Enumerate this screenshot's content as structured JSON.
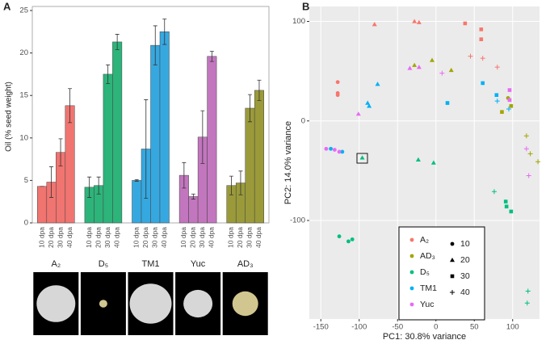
{
  "chart_data": [
    {
      "type": "bar",
      "panel": "A",
      "ylabel": "Oil (% seed weight)",
      "categories": [
        "10 dpa",
        "20 dpa",
        "30 dpa",
        "40 dpa"
      ],
      "ylim": [
        0,
        25
      ],
      "yticks": [
        0,
        5,
        10,
        15,
        20,
        25
      ],
      "series": [
        {
          "name": "A₂",
          "color": "#f07470",
          "values": [
            4.3,
            4.8,
            8.3,
            13.8
          ],
          "errors": [
            0,
            1.8,
            1.6,
            2.0
          ]
        },
        {
          "name": "D₅",
          "color": "#2db47a",
          "values": [
            4.2,
            4.4,
            17.5,
            21.3
          ],
          "errors": [
            1.2,
            1.0,
            1.1,
            0.9
          ]
        },
        {
          "name": "TM1",
          "color": "#36a8e0",
          "values": [
            5.0,
            8.7,
            20.9,
            22.5
          ],
          "errors": [
            0.1,
            5.8,
            2.3,
            1.5
          ]
        },
        {
          "name": "Yuc",
          "color": "#c276be",
          "values": [
            5.6,
            3.1,
            10.1,
            19.6
          ],
          "errors": [
            1.5,
            0.3,
            3.1,
            0.6
          ]
        },
        {
          "name": "AD₃",
          "color": "#9a9a3a",
          "values": [
            4.4,
            4.7,
            13.5,
            15.6
          ],
          "errors": [
            1.1,
            1.4,
            1.6,
            1.2
          ]
        }
      ]
    },
    {
      "type": "scatter",
      "panel": "B",
      "xlabel": "PC1: 30.8% variance",
      "ylabel": "PC2: 14.0% variance",
      "xlim": [
        -165,
        135
      ],
      "ylim": [
        -199,
        115
      ],
      "xticks": [
        -150,
        -100,
        -50,
        0,
        50,
        100
      ],
      "yticks": [
        -100,
        0,
        100
      ],
      "grid": true,
      "stages": [
        10,
        20,
        30,
        40
      ],
      "series": [
        {
          "name": "A₂",
          "color": "#f8766d",
          "x": [
            -128,
            -128,
            -128,
            -80,
            -28,
            -22,
            38,
            59,
            59,
            45,
            61,
            80
          ],
          "y": [
            39,
            28,
            26,
            97,
            100,
            99,
            98,
            92,
            82,
            65,
            63,
            54
          ],
          "stage": [
            10,
            10,
            10,
            20,
            20,
            20,
            30,
            30,
            30,
            40,
            40,
            40
          ]
        },
        {
          "name": "AD₃",
          "color": "#a3a500",
          "x": [
            94,
            -28,
            -5,
            20,
            98,
            86,
            118,
            123,
            133
          ],
          "y": [
            23,
            56,
            61,
            51,
            15,
            9,
            -15,
            -33,
            -41
          ],
          "stage": [
            10,
            20,
            20,
            20,
            30,
            30,
            40,
            40,
            40
          ]
        },
        {
          "name": "D₅",
          "color": "#00bf7d",
          "x": [
            -126,
            -114,
            -109,
            -96,
            -23,
            -3,
            91,
            92,
            98,
            76,
            120,
            119
          ],
          "y": [
            -116,
            -121,
            -119,
            -37,
            -39,
            -42,
            -81,
            -86,
            -91,
            -71,
            -171,
            -183
          ],
          "stage": [
            10,
            10,
            10,
            20,
            20,
            20,
            30,
            30,
            30,
            40,
            40,
            40
          ]
        },
        {
          "name": "TM1",
          "color": "#00b0f6",
          "x": [
            -137,
            -122,
            -87,
            -89,
            -76,
            15,
            61,
            79,
            80,
            95
          ],
          "y": [
            -28,
            -31,
            15,
            18,
            37,
            18,
            38,
            26,
            20,
            12
          ],
          "stage": [
            10,
            10,
            20,
            20,
            20,
            30,
            30,
            30,
            40,
            40
          ]
        },
        {
          "name": "Yuc",
          "color": "#e76bf3",
          "x": [
            -143,
            -132,
            -126,
            -101,
            -34,
            -22,
            96,
            96,
            8,
            118,
            121
          ],
          "y": [
            -28,
            -29,
            -31,
            7,
            53,
            54,
            31,
            21,
            48,
            -28,
            -55
          ],
          "stage": [
            10,
            10,
            10,
            20,
            20,
            20,
            30,
            30,
            40,
            40,
            40
          ]
        }
      ]
    }
  ]
}
